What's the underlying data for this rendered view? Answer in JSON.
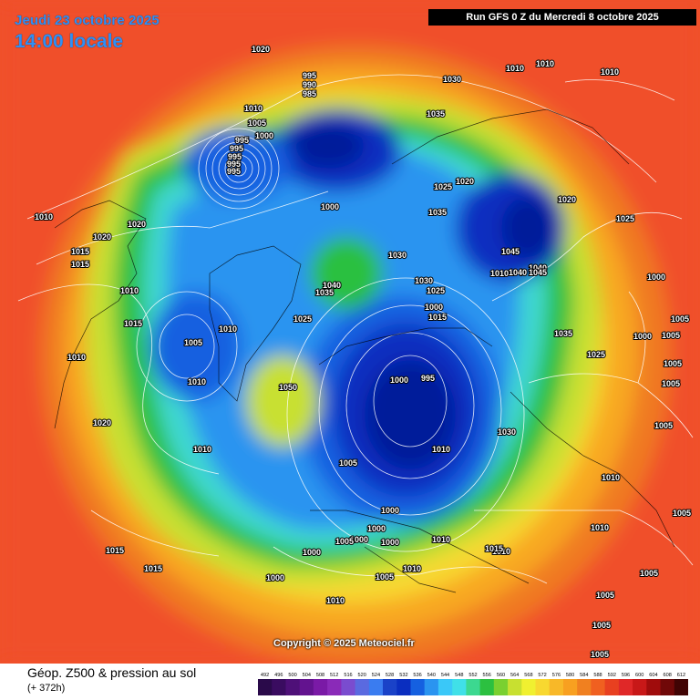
{
  "header": {
    "date": "Jeudi 23 octobre 2025",
    "time": "14:00 locale",
    "run": "Run GFS 0 Z du Mercredi 8 octobre 2025"
  },
  "copyright": "Copyright © 2025 Meteociel.fr",
  "footer": {
    "title": "Géop. Z500 & pression au sol",
    "subtitle": "(+ 372h)"
  },
  "legend": {
    "values": [
      "492",
      "496",
      "500",
      "504",
      "508",
      "512",
      "516",
      "520",
      "524",
      "528",
      "532",
      "536",
      "540",
      "544",
      "548",
      "552",
      "556",
      "560",
      "564",
      "568",
      "572",
      "576",
      "580",
      "584",
      "588",
      "592",
      "596",
      "600",
      "604",
      "608",
      "612"
    ],
    "colors": [
      "#2a0a4a",
      "#3a0c60",
      "#4e1078",
      "#63138f",
      "#7a1aa6",
      "#8a2ab8",
      "#7a4ccf",
      "#5a6ae0",
      "#3a7cf0",
      "#1a42c8",
      "#0a2ec0",
      "#1560e0",
      "#2a94f0",
      "#3ac8f8",
      "#40e0e8",
      "#3cd890",
      "#2cc040",
      "#7ad030",
      "#c8e030",
      "#f0f030",
      "#f8d830",
      "#f8b828",
      "#f8a020",
      "#f08020",
      "#f06020",
      "#e84020",
      "#e02828",
      "#c81818",
      "#a00c0c",
      "#700808",
      "#400404"
    ]
  },
  "pressure_labels": [
    "1020",
    "995",
    "990",
    "985",
    "1030",
    "1010",
    "1010",
    "1010",
    "1010",
    "1005",
    "1000",
    "995",
    "995",
    "995",
    "995",
    "995",
    "1035",
    "1025",
    "1020",
    "1000",
    "1035",
    "1020",
    "1025",
    "1010",
    "1020",
    "1020",
    "1015",
    "1015",
    "1045",
    "1040",
    "1030",
    "1010",
    "1040",
    "1045",
    "1030",
    "1040",
    "1035",
    "1025",
    "1000",
    "1010",
    "1015",
    "1025",
    "1005",
    "1005",
    "1015",
    "1000",
    "1035",
    "1005",
    "1010",
    "1010",
    "1050",
    "1000",
    "995",
    "1025",
    "1000",
    "1005",
    "1005",
    "1020",
    "1030",
    "1010",
    "1010",
    "1005",
    "1010",
    "1005",
    "1000",
    "1000",
    "1000",
    "1000",
    "1010",
    "1010",
    "1010",
    "1015",
    "1000",
    "1005",
    "1010",
    "1000",
    "1005",
    "1015",
    "1015",
    "1010",
    "1005",
    "1005",
    "1005",
    "1005",
    "1010",
    "1005"
  ]
}
